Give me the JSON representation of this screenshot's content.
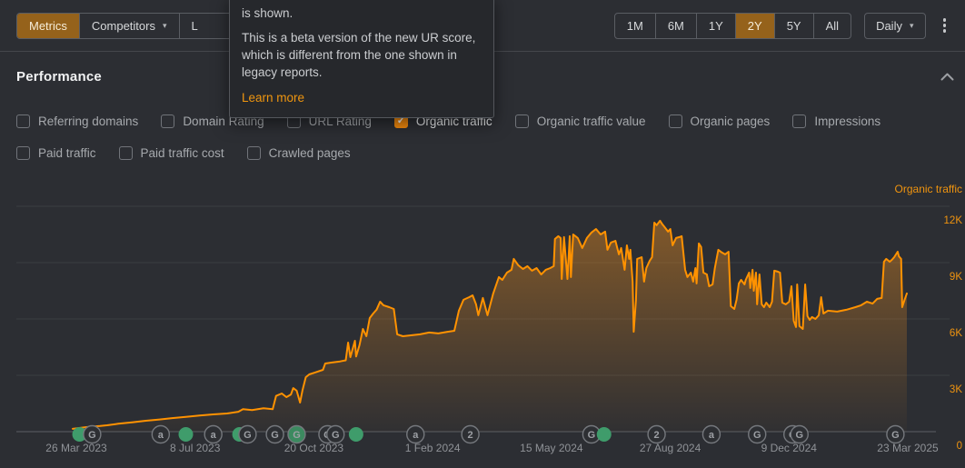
{
  "icons": {
    "check": "✓",
    "caret_down": "▾"
  },
  "header": {
    "view_tabs": {
      "metrics": "Metrics",
      "competitors": "Competitors",
      "partial": "L"
    },
    "ranges": [
      "1M",
      "6M",
      "1Y",
      "2Y",
      "5Y",
      "All"
    ],
    "active_range": "2Y",
    "granularity": "Daily"
  },
  "tooltip": {
    "intro": "is shown.",
    "body": "This is a beta version of the new UR score, which is different from the one shown in legacy reports.",
    "link_label": "Learn more"
  },
  "performance_title": "Performance",
  "metric_toggles": {
    "rows": [
      [
        {
          "label": "Referring domains",
          "checked": false
        },
        {
          "label": "Domain Rating",
          "checked": false
        },
        {
          "label": "URL Rating",
          "checked": false
        },
        {
          "label": "Organic traffic",
          "checked": true
        },
        {
          "label": "Organic traffic value",
          "checked": false
        },
        {
          "label": "Organic pages",
          "checked": false
        },
        {
          "label": "Impressions",
          "checked": false
        }
      ],
      [
        {
          "label": "Paid traffic",
          "checked": false
        },
        {
          "label": "Paid traffic cost",
          "checked": false
        },
        {
          "label": "Crawled pages",
          "checked": false
        }
      ]
    ]
  },
  "chart_data": {
    "type": "area",
    "series_label": "Organic traffic",
    "line_color": "#ff9201",
    "label_color": "#f0940f",
    "ylim": [
      0,
      12000
    ],
    "y_ticks": [
      {
        "label": "12K",
        "value": 12000
      },
      {
        "label": "9K",
        "value": 9000
      },
      {
        "label": "6K",
        "value": 6000
      },
      {
        "label": "3K",
        "value": 3000
      },
      {
        "label": "0",
        "value": 0
      }
    ],
    "x_tick_labels": [
      "26 Mar 2023",
      "8 Jul 2023",
      "20 Oct 2023",
      "1 Feb 2024",
      "15 May 2024",
      "27 Aug 2024",
      "9 Dec 2024",
      "23 Mar 2025"
    ],
    "x_unit": "days from series start (~22 Mar 2023)",
    "series": [
      {
        "name": "Organic traffic",
        "points": [
          [
            0,
            150
          ],
          [
            12,
            240
          ],
          [
            24,
            300
          ],
          [
            30,
            340
          ],
          [
            40,
            420
          ],
          [
            52,
            500
          ],
          [
            64,
            580
          ],
          [
            76,
            650
          ],
          [
            87,
            720
          ],
          [
            99,
            790
          ],
          [
            111,
            860
          ],
          [
            123,
            920
          ],
          [
            135,
            970
          ],
          [
            145,
            1060
          ],
          [
            149,
            1200
          ],
          [
            157,
            1150
          ],
          [
            167,
            1250
          ],
          [
            175,
            1200
          ],
          [
            178,
            1900
          ],
          [
            183,
            2030
          ],
          [
            187,
            1840
          ],
          [
            191,
            1980
          ],
          [
            193,
            2320
          ],
          [
            196,
            2180
          ],
          [
            199,
            1550
          ],
          [
            201,
            2180
          ],
          [
            204,
            2900
          ],
          [
            207,
            3050
          ],
          [
            212,
            3150
          ],
          [
            219,
            3290
          ],
          [
            221,
            3630
          ],
          [
            227,
            3680
          ],
          [
            234,
            3740
          ],
          [
            239,
            3800
          ],
          [
            241,
            4740
          ],
          [
            243,
            3970
          ],
          [
            247,
            4840
          ],
          [
            248,
            4000
          ],
          [
            251,
            4600
          ],
          [
            254,
            5470
          ],
          [
            257,
            5080
          ],
          [
            260,
            6050
          ],
          [
            263,
            6290
          ],
          [
            266,
            6500
          ],
          [
            269,
            6920
          ],
          [
            272,
            6730
          ],
          [
            277,
            6630
          ],
          [
            281,
            6530
          ],
          [
            284,
            5180
          ],
          [
            289,
            5080
          ],
          [
            296,
            5130
          ],
          [
            304,
            5180
          ],
          [
            312,
            5280
          ],
          [
            320,
            5230
          ],
          [
            328,
            5320
          ],
          [
            334,
            5370
          ],
          [
            338,
            6440
          ],
          [
            342,
            7020
          ],
          [
            347,
            7160
          ],
          [
            350,
            7260
          ],
          [
            353,
            6780
          ],
          [
            355,
            6200
          ],
          [
            359,
            7120
          ],
          [
            363,
            6200
          ],
          [
            368,
            7360
          ],
          [
            373,
            8230
          ],
          [
            376,
            8080
          ],
          [
            380,
            8470
          ],
          [
            384,
            8620
          ],
          [
            386,
            9200
          ],
          [
            390,
            8860
          ],
          [
            394,
            8660
          ],
          [
            398,
            8810
          ],
          [
            402,
            8570
          ],
          [
            406,
            8710
          ],
          [
            410,
            8370
          ],
          [
            414,
            8620
          ],
          [
            418,
            8710
          ],
          [
            421,
            8810
          ],
          [
            422,
            10260
          ],
          [
            425,
            10410
          ],
          [
            427,
            10310
          ],
          [
            428,
            8130
          ],
          [
            430,
            10360
          ],
          [
            433,
            8130
          ],
          [
            435,
            10410
          ],
          [
            436,
            8230
          ],
          [
            438,
            10500
          ],
          [
            442,
            10310
          ],
          [
            446,
            9780
          ],
          [
            450,
            10310
          ],
          [
            454,
            10600
          ],
          [
            458,
            10790
          ],
          [
            462,
            10500
          ],
          [
            466,
            10650
          ],
          [
            468,
            9680
          ],
          [
            471,
            10070
          ],
          [
            475,
            10160
          ],
          [
            478,
            9440
          ],
          [
            480,
            9780
          ],
          [
            483,
            8620
          ],
          [
            485,
            9920
          ],
          [
            487,
            9200
          ],
          [
            488,
            9680
          ],
          [
            490,
            7990
          ],
          [
            491,
            5320
          ],
          [
            493,
            7020
          ],
          [
            494,
            9200
          ],
          [
            498,
            9290
          ],
          [
            500,
            7990
          ],
          [
            502,
            8710
          ],
          [
            505,
            9100
          ],
          [
            507,
            9290
          ],
          [
            509,
            11130
          ],
          [
            511,
            10990
          ],
          [
            514,
            11230
          ],
          [
            516,
            11040
          ],
          [
            518,
            10890
          ],
          [
            521,
            10650
          ],
          [
            523,
            10790
          ],
          [
            525,
            9920
          ],
          [
            528,
            10310
          ],
          [
            531,
            10360
          ],
          [
            533,
            10410
          ],
          [
            536,
            8620
          ],
          [
            538,
            8230
          ],
          [
            541,
            8470
          ],
          [
            543,
            7990
          ],
          [
            545,
            8710
          ],
          [
            546,
            7890
          ],
          [
            548,
            10020
          ],
          [
            550,
            9830
          ],
          [
            552,
            8470
          ],
          [
            555,
            8370
          ],
          [
            557,
            7740
          ],
          [
            560,
            7840
          ],
          [
            562,
            8710
          ],
          [
            565,
            9680
          ],
          [
            568,
            9540
          ],
          [
            571,
            9440
          ],
          [
            574,
            9580
          ],
          [
            576,
            6680
          ],
          [
            579,
            6530
          ],
          [
            581,
            7020
          ],
          [
            583,
            7890
          ],
          [
            585,
            8080
          ],
          [
            588,
            7840
          ],
          [
            589,
            8080
          ],
          [
            592,
            8470
          ],
          [
            593,
            7650
          ],
          [
            595,
            8620
          ],
          [
            596,
            7500
          ],
          [
            598,
            8470
          ],
          [
            599,
            6780
          ],
          [
            601,
            8370
          ],
          [
            603,
            6780
          ],
          [
            605,
            6630
          ],
          [
            607,
            6870
          ],
          [
            610,
            6630
          ],
          [
            612,
            6920
          ],
          [
            614,
            8570
          ],
          [
            617,
            8520
          ],
          [
            619,
            8470
          ],
          [
            621,
            6870
          ],
          [
            624,
            6780
          ],
          [
            627,
            6920
          ],
          [
            629,
            7740
          ],
          [
            631,
            5910
          ],
          [
            633,
            5570
          ],
          [
            634,
            7840
          ],
          [
            636,
            5620
          ],
          [
            639,
            5470
          ],
          [
            641,
            7840
          ],
          [
            643,
            6150
          ],
          [
            645,
            5950
          ],
          [
            647,
            6100
          ],
          [
            650,
            6000
          ],
          [
            653,
            6200
          ],
          [
            655,
            7160
          ],
          [
            657,
            6290
          ],
          [
            661,
            6440
          ],
          [
            669,
            6390
          ],
          [
            677,
            6490
          ],
          [
            685,
            6630
          ],
          [
            690,
            6730
          ],
          [
            695,
            6920
          ],
          [
            700,
            6820
          ],
          [
            704,
            7070
          ],
          [
            708,
            7120
          ],
          [
            710,
            9050
          ],
          [
            712,
            9200
          ],
          [
            715,
            9050
          ],
          [
            717,
            9150
          ],
          [
            719,
            9290
          ],
          [
            722,
            9580
          ],
          [
            723,
            9340
          ],
          [
            725,
            9200
          ],
          [
            726,
            6630
          ],
          [
            728,
            7020
          ],
          [
            730,
            7360
          ]
        ]
      }
    ],
    "event_markers": [
      {
        "day": 6,
        "type": "green-dot"
      },
      {
        "day": 17,
        "type": "google"
      },
      {
        "day": 77,
        "type": "ahrefs"
      },
      {
        "day": 99,
        "type": "green-dot"
      },
      {
        "day": 123,
        "type": "ahrefs"
      },
      {
        "day": 146,
        "type": "green-dot"
      },
      {
        "day": 153,
        "type": "google"
      },
      {
        "day": 177,
        "type": "google"
      },
      {
        "day": 196,
        "type": "google-green"
      },
      {
        "day": 223,
        "type": "google"
      },
      {
        "day": 230,
        "type": "google"
      },
      {
        "day": 248,
        "type": "green-dot"
      },
      {
        "day": 300,
        "type": "ahrefs"
      },
      {
        "day": 348,
        "type": "number2"
      },
      {
        "day": 454,
        "type": "google"
      },
      {
        "day": 465,
        "type": "green-dot"
      },
      {
        "day": 511,
        "type": "number2"
      },
      {
        "day": 559,
        "type": "ahrefs"
      },
      {
        "day": 599,
        "type": "google"
      },
      {
        "day": 630,
        "type": "google"
      },
      {
        "day": 636,
        "type": "google"
      },
      {
        "day": 720,
        "type": "google"
      }
    ],
    "marker_glyphs": {
      "google": "G",
      "ahrefs": "a",
      "number2": "2",
      "google-green": "G"
    }
  }
}
